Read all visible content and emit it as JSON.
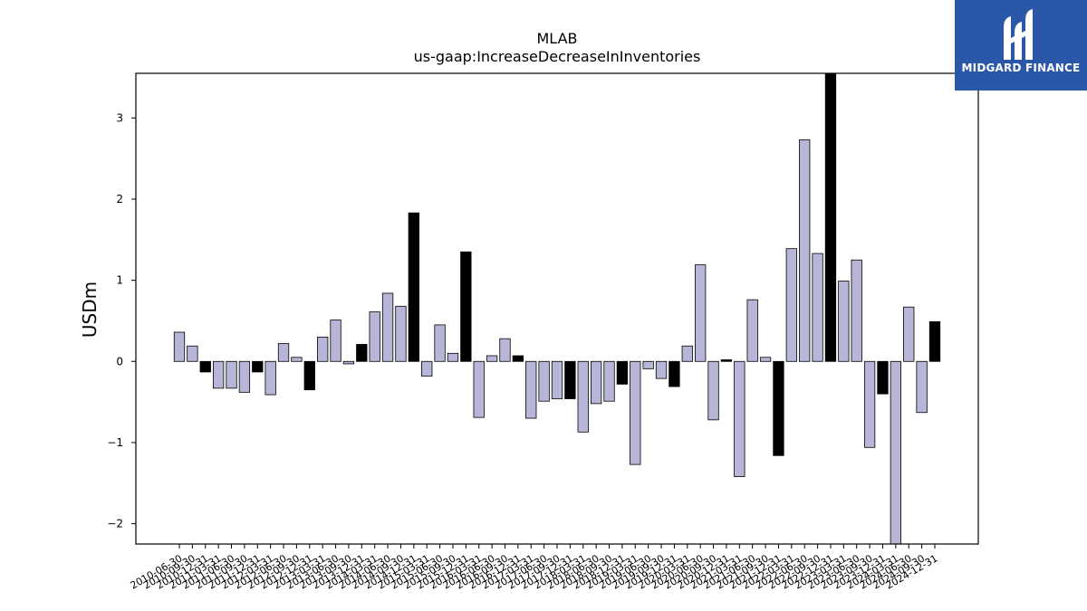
{
  "brand": {
    "name": "MIDGARD FINANCE",
    "bg": "#2b57a8"
  },
  "chart_data": {
    "type": "bar",
    "title": "MLAB",
    "subtitle": "us-gaap:IncreaseDecreaseInInventories",
    "ylabel": "USDm",
    "xlabel": "",
    "ylim": [
      -2.25,
      3.55
    ],
    "yticks": [
      -2,
      -1,
      0,
      1,
      2,
      3
    ],
    "grid": false,
    "colors": {
      "quarter": "#b8b6d8",
      "year_end": "#000000",
      "edge": "#000000"
    },
    "categories": [
      "2010-06-30",
      "2010-09-30",
      "2010-12-31",
      "2011-03-31",
      "2011-06-30",
      "2011-09-30",
      "2011-12-31",
      "2012-03-31",
      "2012-06-30",
      "2012-09-30",
      "2012-12-31",
      "2013-03-31",
      "2013-06-30",
      "2013-09-30",
      "2013-12-31",
      "2014-03-31",
      "2014-06-30",
      "2014-09-30",
      "2014-12-31",
      "2015-03-31",
      "2015-06-30",
      "2015-09-30",
      "2015-12-31",
      "2016-03-31",
      "2016-06-30",
      "2016-09-30",
      "2016-12-31",
      "2017-03-31",
      "2017-06-30",
      "2017-09-30",
      "2017-12-31",
      "2018-03-31",
      "2018-06-30",
      "2018-09-30",
      "2018-12-31",
      "2019-03-31",
      "2019-06-30",
      "2019-09-30",
      "2019-12-31",
      "2020-03-31",
      "2020-06-30",
      "2020-09-30",
      "2020-12-31",
      "2021-03-31",
      "2021-06-30",
      "2021-09-30",
      "2021-12-31",
      "2022-03-31",
      "2022-06-30",
      "2022-09-30",
      "2022-12-31",
      "2023-03-31",
      "2023-06-30",
      "2023-09-30",
      "2023-12-31",
      "2024-03-31",
      "2024-06-30",
      "2024-09-30",
      "2024-12-31"
    ],
    "values": [
      0.36,
      0.19,
      -0.13,
      -0.33,
      -0.33,
      -0.38,
      -0.13,
      -0.41,
      0.22,
      0.05,
      -0.35,
      0.3,
      0.51,
      -0.03,
      0.21,
      0.61,
      0.84,
      0.68,
      1.83,
      -0.18,
      0.45,
      0.1,
      1.35,
      -0.69,
      0.07,
      0.28,
      0.07,
      -0.7,
      -0.49,
      -0.46,
      -0.46,
      -0.87,
      -0.52,
      -0.49,
      -0.28,
      -1.27,
      -0.09,
      -0.21,
      -0.31,
      0.19,
      1.19,
      -0.72,
      0.02,
      -1.42,
      0.76,
      0.05,
      -1.16,
      1.39,
      2.73,
      1.33,
      3.6,
      0.99,
      1.25,
      -1.06,
      -0.4,
      -2.3,
      0.67,
      -0.63,
      0.49
    ],
    "year_end": [
      false,
      false,
      true,
      false,
      false,
      false,
      true,
      false,
      false,
      false,
      true,
      false,
      false,
      false,
      true,
      false,
      false,
      false,
      true,
      false,
      false,
      false,
      true,
      false,
      false,
      false,
      true,
      false,
      false,
      false,
      true,
      false,
      false,
      false,
      true,
      false,
      false,
      false,
      true,
      false,
      false,
      false,
      true,
      false,
      false,
      false,
      true,
      false,
      false,
      false,
      true,
      false,
      false,
      false,
      true,
      false,
      false,
      false,
      true
    ]
  }
}
